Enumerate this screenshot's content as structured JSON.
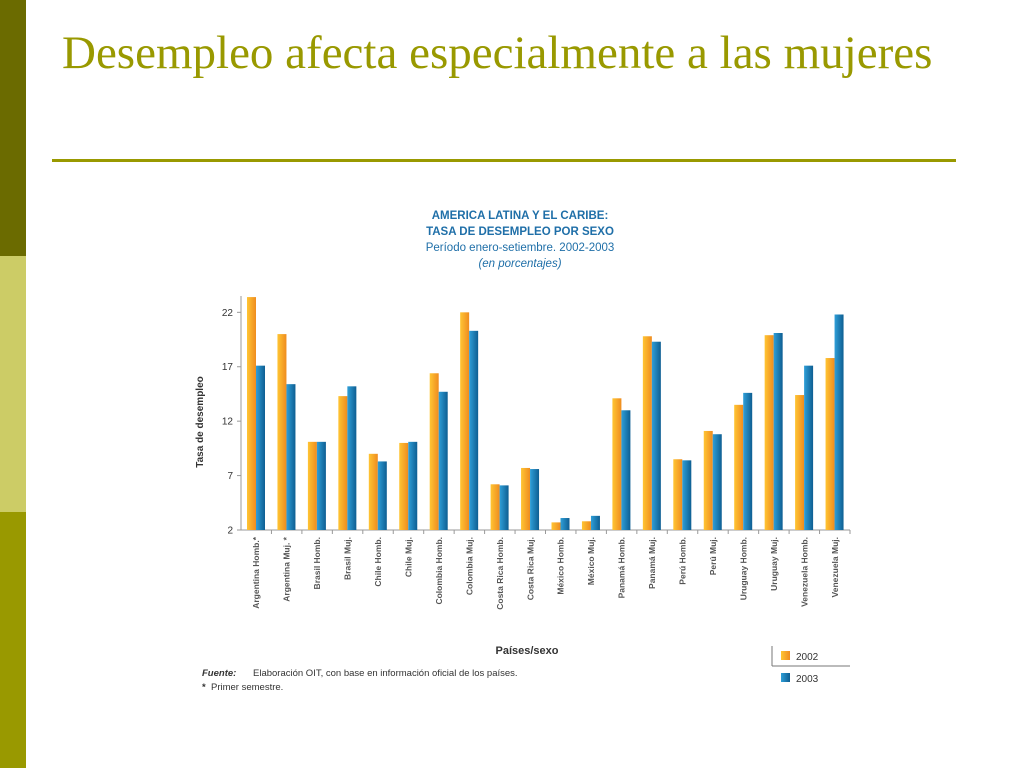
{
  "slide": {
    "title": "Desempleo afecta especialmente a las mujeres"
  },
  "chart_data": {
    "type": "bar",
    "title_line1": "AMERICA LATINA Y EL CARIBE:",
    "title_line2": "TASA DE DESEMPLEO POR SEXO",
    "subtitle": "Período enero-setiembre. 2002-2003",
    "subtitle2": "(en porcentajes)",
    "xlabel": "Países/sexo",
    "ylabel": "Tasa de desempleo",
    "ylim": [
      2,
      23.5
    ],
    "yticks": [
      2,
      7,
      12,
      17,
      22
    ],
    "grid": false,
    "legend_position": "bottom-right",
    "categories": [
      "Argentina Homb.*",
      "Argentina Muj. *",
      "Brasil Homb.",
      "Brasil Muj.",
      "Chile Homb.",
      "Chile Muj.",
      "Colombia Homb.",
      "Colombia Muj.",
      "Costa Rica Homb.",
      "Costa Rica Muj.",
      "México Homb.",
      "México Muj.",
      "Panamá Homb.",
      "Panamá Muj.",
      "Perú Homb.",
      "Perú Muj.",
      "Uruguay Homb.",
      "Uruguay Muj.",
      "Venezuela Homb.",
      "Venezuela Muj."
    ],
    "series": [
      {
        "name": "2002",
        "color": "#f7a52b",
        "values": [
          23.4,
          20.0,
          10.1,
          14.3,
          9.0,
          10.0,
          16.4,
          22.0,
          6.2,
          7.7,
          2.7,
          2.8,
          14.1,
          19.8,
          8.5,
          11.1,
          13.5,
          19.9,
          14.4,
          17.8
        ]
      },
      {
        "name": "2003",
        "color": "#1a7bb0",
        "values": [
          17.1,
          15.4,
          10.1,
          15.2,
          8.3,
          10.1,
          14.7,
          20.3,
          6.1,
          7.6,
          3.1,
          3.3,
          13.0,
          19.3,
          8.4,
          10.8,
          14.6,
          20.1,
          17.1,
          21.8
        ]
      }
    ],
    "footnote_label": "Fuente:",
    "footnote_text": "Elaboración OIT, con base en información oficial de los países.",
    "footnote2_mark": "*",
    "footnote2_text": "Primer semestre."
  }
}
